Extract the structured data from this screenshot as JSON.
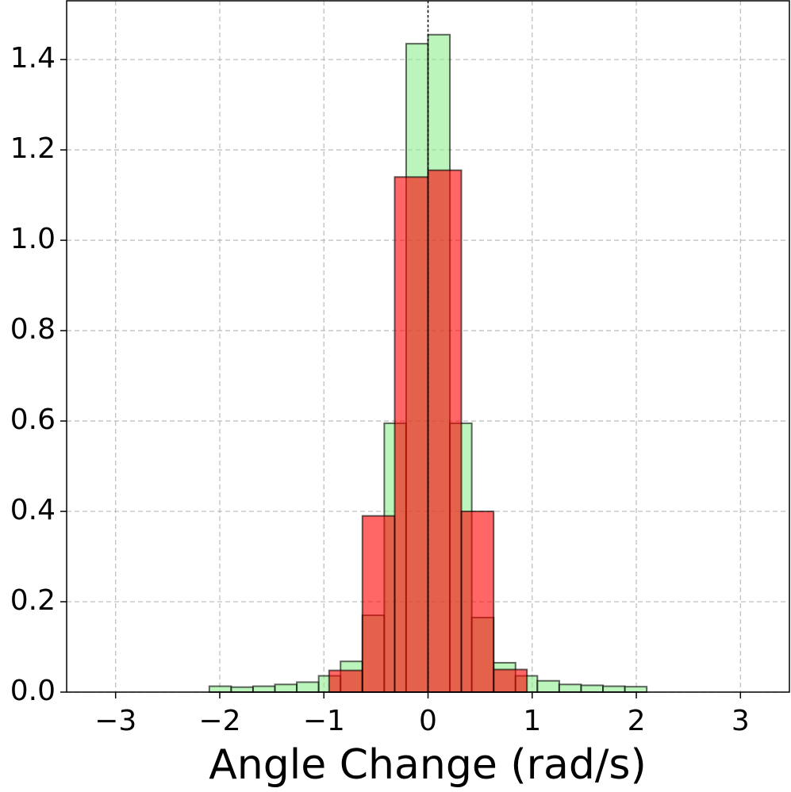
{
  "chart_data": {
    "type": "histogram",
    "xlabel": "Angle Change (rad/s)",
    "xlim": [
      -3.47,
      3.47
    ],
    "ylim": [
      0,
      1.53
    ],
    "xticks": [
      {
        "value": -3,
        "label": "−3"
      },
      {
        "value": -2,
        "label": "−2"
      },
      {
        "value": -1,
        "label": "−1"
      },
      0,
      1,
      2,
      3
    ],
    "yticks": [
      {
        "value": 0,
        "label": "0.0"
      },
      0.2,
      0.4,
      0.6,
      0.8,
      {
        "value": 1,
        "label": "1.0"
      },
      1.2,
      1.4
    ],
    "grid": true,
    "vline": 0,
    "series": [
      {
        "color": "#90ee90",
        "bins": [
          -2.1,
          -1.89,
          -1.68,
          -1.47,
          -1.26,
          -1.05,
          -0.84,
          -0.63,
          -0.42,
          -0.21,
          0,
          0.21,
          0.42,
          0.63,
          0.84,
          1.05,
          1.26,
          1.47,
          1.68,
          1.89,
          2.1
        ],
        "values": [
          0.013,
          0.011,
          0.013,
          0.017,
          0.022,
          0.036,
          0.068,
          0.17,
          0.595,
          1.435,
          1.455,
          0.595,
          0.165,
          0.065,
          0.036,
          0.025,
          0.017,
          0.015,
          0.013,
          0.012
        ]
      },
      {
        "color": "#ff0000",
        "bins": [
          -0.95,
          -0.63,
          -0.32,
          0,
          0.32,
          0.63,
          0.95
        ],
        "values": [
          0.048,
          0.39,
          1.14,
          1.155,
          0.4,
          0.05
        ]
      }
    ]
  }
}
